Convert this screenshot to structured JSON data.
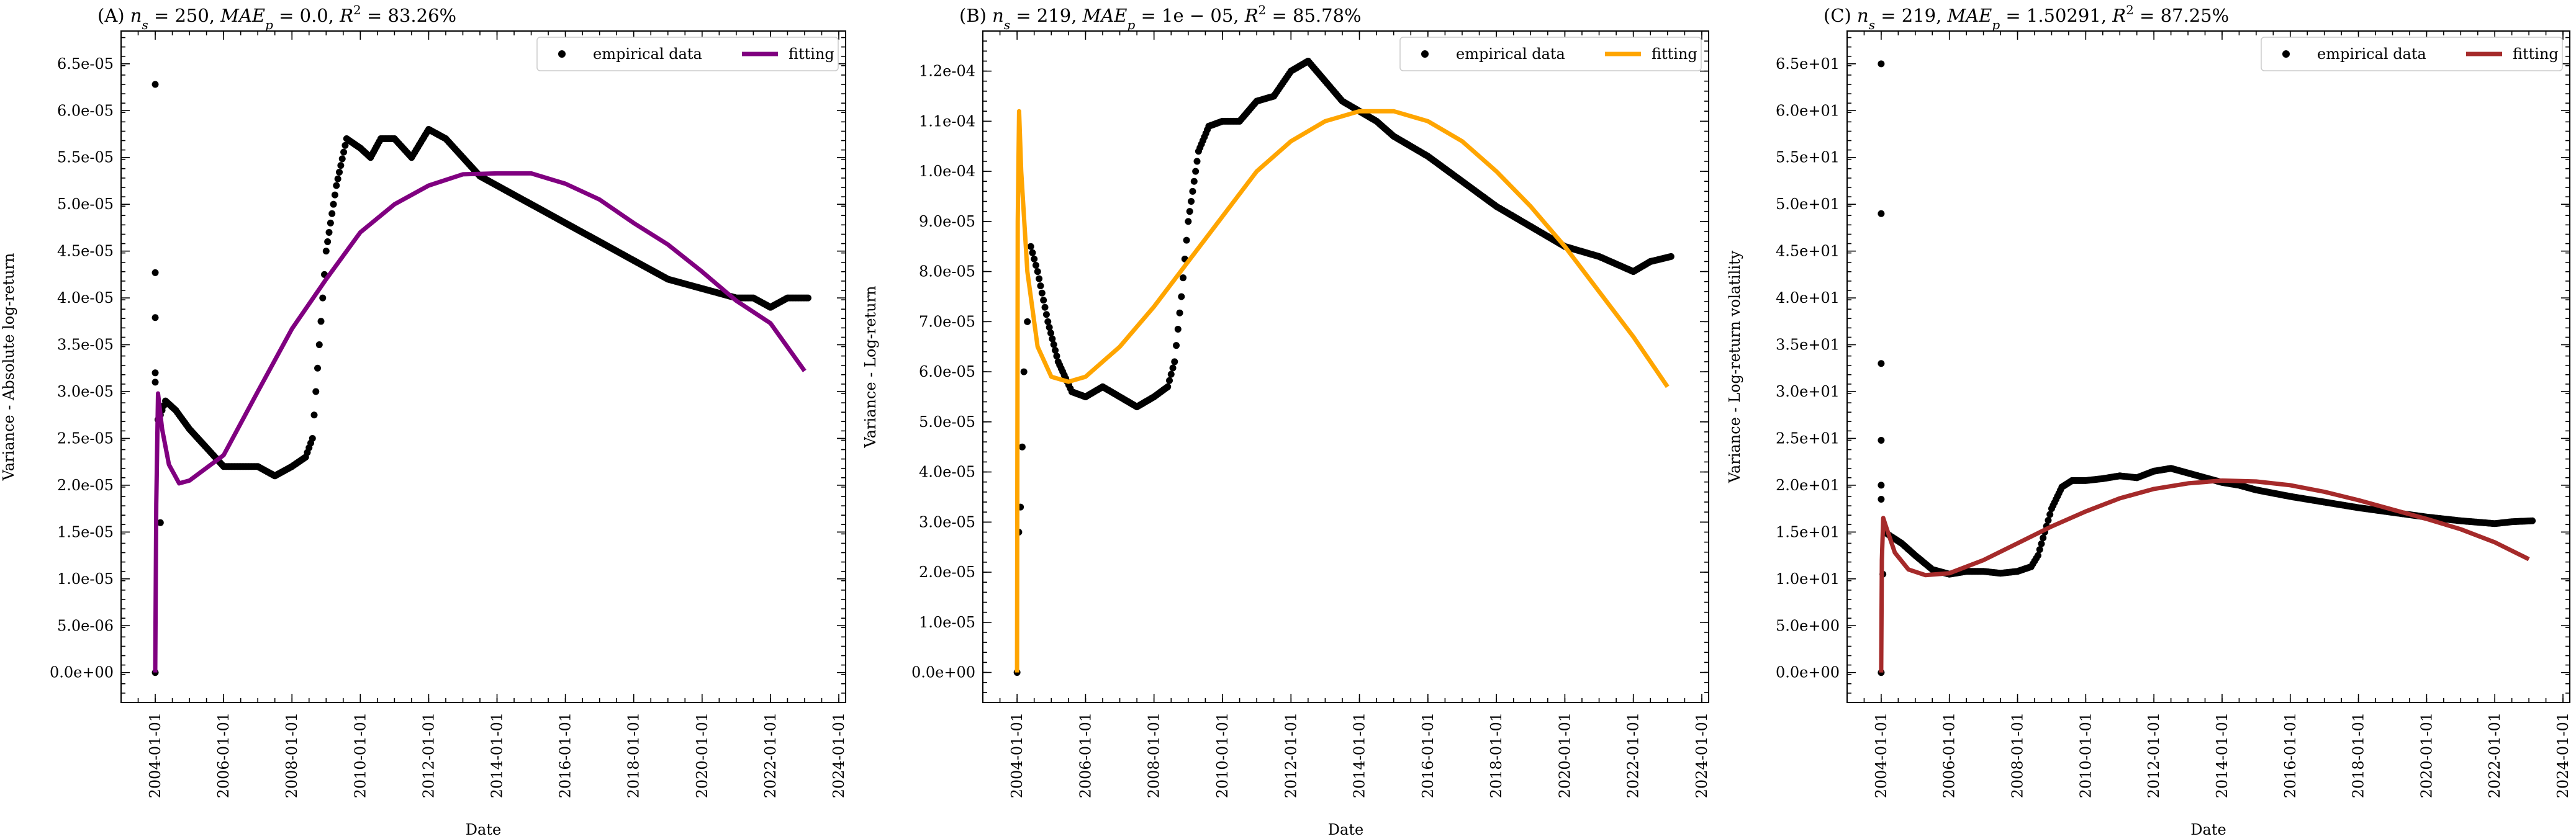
{
  "chart_data": [
    {
      "type": "scatter+line",
      "title": {
        "prefix": "(A)",
        "ns": "250",
        "mae": "0.0",
        "r2": "83.26%"
      },
      "xlabel": "Date",
      "ylabel": "Variance - Absolute log-return",
      "legend": {
        "placement": "top-right",
        "entries": [
          "empirical data",
          "fitting"
        ]
      },
      "fit_color": "#800080",
      "xlim": [
        2003.0,
        2024.2
      ],
      "ylim": [
        -3.2e-06,
        6.85e-05
      ],
      "x_ticks": [
        "2004-01-01",
        "2006-01-01",
        "2008-01-01",
        "2010-01-01",
        "2012-01-01",
        "2014-01-01",
        "2016-01-01",
        "2018-01-01",
        "2020-01-01",
        "2022-01-01",
        "2024-01-01"
      ],
      "y_ticks": [
        "0.0e+00",
        "5.0e-06",
        "1.0e-05",
        "1.5e-05",
        "2.0e-05",
        "2.5e-05",
        "3.0e-05",
        "3.5e-05",
        "4.0e-05",
        "4.5e-05",
        "5.0e-05",
        "5.5e-05",
        "6.0e-05",
        "6.5e-05"
      ],
      "y_tick_values": [
        0,
        5e-06,
        1e-05,
        1.5e-05,
        2e-05,
        2.5e-05,
        3e-05,
        3.5e-05,
        4e-05,
        4.5e-05,
        5e-05,
        5.5e-05,
        6e-05,
        6.5e-05
      ],
      "empirical_outliers": [
        [
          2004.0,
          6.28e-05
        ],
        [
          2004.0,
          4.27e-05
        ],
        [
          2004.0,
          3.79e-05
        ],
        [
          2004.0,
          3.2e-05
        ],
        [
          2004.0,
          3.1e-05
        ],
        [
          2004.0,
          0.0
        ],
        [
          2004.08,
          2.7e-05
        ],
        [
          2004.15,
          1.6e-05
        ]
      ],
      "empirical_data": [
        [
          2004.1,
          2.7e-05
        ],
        [
          2004.3,
          2.9e-05
        ],
        [
          2004.6,
          2.8e-05
        ],
        [
          2005.0,
          2.6e-05
        ],
        [
          2005.5,
          2.4e-05
        ],
        [
          2006.0,
          2.2e-05
        ],
        [
          2006.5,
          2.2e-05
        ],
        [
          2007.0,
          2.2e-05
        ],
        [
          2007.5,
          2.1e-05
        ],
        [
          2008.0,
          2.2e-05
        ],
        [
          2008.4,
          2.3e-05
        ],
        [
          2008.6,
          2.5e-05
        ],
        [
          2008.8,
          3.5e-05
        ],
        [
          2009.0,
          4.5e-05
        ],
        [
          2009.3,
          5.2e-05
        ],
        [
          2009.6,
          5.7e-05
        ],
        [
          2010.0,
          5.6e-05
        ],
        [
          2010.3,
          5.5e-05
        ],
        [
          2010.6,
          5.7e-05
        ],
        [
          2011.0,
          5.7e-05
        ],
        [
          2011.5,
          5.5e-05
        ],
        [
          2012.0,
          5.8e-05
        ],
        [
          2012.5,
          5.7e-05
        ],
        [
          2013.0,
          5.5e-05
        ],
        [
          2013.5,
          5.3e-05
        ],
        [
          2014.0,
          5.2e-05
        ],
        [
          2014.5,
          5.1e-05
        ],
        [
          2015.0,
          5e-05
        ],
        [
          2016.0,
          4.8e-05
        ],
        [
          2017.0,
          4.6e-05
        ],
        [
          2018.0,
          4.4e-05
        ],
        [
          2019.0,
          4.2e-05
        ],
        [
          2020.0,
          4.1e-05
        ],
        [
          2021.0,
          4e-05
        ],
        [
          2021.5,
          4e-05
        ],
        [
          2022.0,
          3.9e-05
        ],
        [
          2022.5,
          4e-05
        ],
        [
          2023.1,
          4e-05
        ]
      ],
      "fitting": [
        [
          2004.0,
          0.0
        ],
        [
          2004.03,
          1.8e-05
        ],
        [
          2004.08,
          2.98e-05
        ],
        [
          2004.2,
          2.6e-05
        ],
        [
          2004.4,
          2.22e-05
        ],
        [
          2004.7,
          2.02e-05
        ],
        [
          2005.0,
          2.05e-05
        ],
        [
          2006.0,
          2.32e-05
        ],
        [
          2007.0,
          3e-05
        ],
        [
          2008.0,
          3.67e-05
        ],
        [
          2009.0,
          4.2e-05
        ],
        [
          2010.0,
          4.7e-05
        ],
        [
          2011.0,
          5e-05
        ],
        [
          2012.0,
          5.2e-05
        ],
        [
          2013.0,
          5.32e-05
        ],
        [
          2014.0,
          5.33e-05
        ],
        [
          2015.0,
          5.33e-05
        ],
        [
          2016.0,
          5.22e-05
        ],
        [
          2017.0,
          5.05e-05
        ],
        [
          2018.0,
          4.8e-05
        ],
        [
          2019.0,
          4.57e-05
        ],
        [
          2020.0,
          4.28e-05
        ],
        [
          2021.0,
          3.97e-05
        ],
        [
          2022.0,
          3.73e-05
        ],
        [
          2023.0,
          3.22e-05
        ]
      ]
    },
    {
      "type": "scatter+line",
      "title": {
        "prefix": "(B)",
        "ns": "219",
        "mae": "1e − 05",
        "r2": "85.78%"
      },
      "xlabel": "Date",
      "ylabel": "Variance - Log-return",
      "legend": {
        "placement": "top-right",
        "entries": [
          "empirical data",
          "fitting"
        ]
      },
      "fit_color": "#FFA500",
      "xlim": [
        2003.0,
        2024.2
      ],
      "ylim": [
        -6e-06,
        0.000128
      ],
      "x_ticks": [
        "2004-01-01",
        "2006-01-01",
        "2008-01-01",
        "2010-01-01",
        "2012-01-01",
        "2014-01-01",
        "2016-01-01",
        "2018-01-01",
        "2020-01-01",
        "2022-01-01",
        "2024-01-01"
      ],
      "y_ticks": [
        "0.0e+00",
        "1.0e-05",
        "2.0e-05",
        "3.0e-05",
        "4.0e-05",
        "5.0e-05",
        "6.0e-05",
        "7.0e-05",
        "8.0e-05",
        "9.0e-05",
        "1.0e-04",
        "1.1e-04",
        "1.2e-04"
      ],
      "y_tick_values": [
        0,
        1e-05,
        2e-05,
        3e-05,
        4e-05,
        5e-05,
        6e-05,
        7e-05,
        8e-05,
        9e-05,
        0.0001,
        0.00011,
        0.00012
      ],
      "empirical_outliers": [
        [
          2004.0,
          0.0
        ],
        [
          2004.05,
          2.8e-05
        ],
        [
          2004.1,
          3.3e-05
        ],
        [
          2004.15,
          4.5e-05
        ],
        [
          2004.2,
          6e-05
        ],
        [
          2004.3,
          7e-05
        ]
      ],
      "empirical_data": [
        [
          2004.4,
          8.5e-05
        ],
        [
          2004.6,
          8e-05
        ],
        [
          2004.9,
          7e-05
        ],
        [
          2005.2,
          6.2e-05
        ],
        [
          2005.6,
          5.6e-05
        ],
        [
          2006.0,
          5.5e-05
        ],
        [
          2006.5,
          5.7e-05
        ],
        [
          2007.0,
          5.5e-05
        ],
        [
          2007.5,
          5.3e-05
        ],
        [
          2008.0,
          5.5e-05
        ],
        [
          2008.4,
          5.7e-05
        ],
        [
          2008.6,
          6.2e-05
        ],
        [
          2008.8,
          7.5e-05
        ],
        [
          2009.0,
          9e-05
        ],
        [
          2009.3,
          0.000104
        ],
        [
          2009.6,
          0.000109
        ],
        [
          2010.0,
          0.00011
        ],
        [
          2010.5,
          0.00011
        ],
        [
          2011.0,
          0.000114
        ],
        [
          2011.5,
          0.000115
        ],
        [
          2012.0,
          0.00012
        ],
        [
          2012.5,
          0.000122
        ],
        [
          2013.0,
          0.000118
        ],
        [
          2013.5,
          0.000114
        ],
        [
          2014.0,
          0.000112
        ],
        [
          2014.5,
          0.00011
        ],
        [
          2015.0,
          0.000107
        ],
        [
          2016.0,
          0.000103
        ],
        [
          2017.0,
          9.8e-05
        ],
        [
          2018.0,
          9.3e-05
        ],
        [
          2019.0,
          8.9e-05
        ],
        [
          2020.0,
          8.5e-05
        ],
        [
          2021.0,
          8.3e-05
        ],
        [
          2022.0,
          8e-05
        ],
        [
          2022.5,
          8.2e-05
        ],
        [
          2023.1,
          8.3e-05
        ]
      ],
      "fitting": [
        [
          2004.0,
          0.0
        ],
        [
          2004.02,
          9e-05
        ],
        [
          2004.06,
          0.000112
        ],
        [
          2004.12,
          0.0001
        ],
        [
          2004.3,
          8e-05
        ],
        [
          2004.6,
          6.5e-05
        ],
        [
          2005.0,
          5.9e-05
        ],
        [
          2005.5,
          5.8e-05
        ],
        [
          2006.0,
          5.9e-05
        ],
        [
          2007.0,
          6.5e-05
        ],
        [
          2008.0,
          7.3e-05
        ],
        [
          2009.0,
          8.2e-05
        ],
        [
          2010.0,
          9.1e-05
        ],
        [
          2011.0,
          0.0001
        ],
        [
          2012.0,
          0.000106
        ],
        [
          2013.0,
          0.00011
        ],
        [
          2014.0,
          0.000112
        ],
        [
          2015.0,
          0.000112
        ],
        [
          2016.0,
          0.00011
        ],
        [
          2017.0,
          0.000106
        ],
        [
          2018.0,
          0.0001
        ],
        [
          2019.0,
          9.3e-05
        ],
        [
          2020.0,
          8.5e-05
        ],
        [
          2021.0,
          7.6e-05
        ],
        [
          2022.0,
          6.7e-05
        ],
        [
          2023.0,
          5.7e-05
        ]
      ]
    },
    {
      "type": "scatter+line",
      "title": {
        "prefix": "(C)",
        "ns": "219",
        "mae": "1.50291",
        "r2": "87.25%"
      },
      "xlabel": "Date",
      "ylabel": "Variance - Log-return volatility",
      "legend": {
        "placement": "top-right",
        "entries": [
          "empirical data",
          "fitting"
        ]
      },
      "fit_color": "#A52A2A",
      "xlim": [
        2003.0,
        2024.2
      ],
      "ylim": [
        -3.2,
        68.5
      ],
      "x_ticks": [
        "2004-01-01",
        "2006-01-01",
        "2008-01-01",
        "2010-01-01",
        "2012-01-01",
        "2014-01-01",
        "2016-01-01",
        "2018-01-01",
        "2020-01-01",
        "2022-01-01",
        "2024-01-01"
      ],
      "y_ticks": [
        "0.0e+00",
        "5.0e+00",
        "1.0e+01",
        "1.5e+01",
        "2.0e+01",
        "2.5e+01",
        "3.0e+01",
        "3.5e+01",
        "4.0e+01",
        "4.5e+01",
        "5.0e+01",
        "5.5e+01",
        "6.0e+01",
        "6.5e+01"
      ],
      "y_tick_values": [
        0,
        5,
        10,
        15,
        20,
        25,
        30,
        35,
        40,
        45,
        50,
        55,
        60,
        65
      ],
      "empirical_outliers": [
        [
          2004.0,
          65.0
        ],
        [
          2004.0,
          49.0
        ],
        [
          2004.0,
          33.0
        ],
        [
          2004.0,
          24.8
        ],
        [
          2004.0,
          20.0
        ],
        [
          2004.0,
          18.5
        ],
        [
          2004.0,
          0.0
        ],
        [
          2004.05,
          10.5
        ]
      ],
      "empirical_data": [
        [
          2004.1,
          15.0
        ],
        [
          2004.3,
          14.5
        ],
        [
          2004.6,
          13.8
        ],
        [
          2005.0,
          12.5
        ],
        [
          2005.5,
          11.0
        ],
        [
          2006.0,
          10.5
        ],
        [
          2006.5,
          10.8
        ],
        [
          2007.0,
          10.8
        ],
        [
          2007.5,
          10.6
        ],
        [
          2008.0,
          10.8
        ],
        [
          2008.4,
          11.3
        ],
        [
          2008.6,
          12.5
        ],
        [
          2008.8,
          15.0
        ],
        [
          2009.0,
          17.5
        ],
        [
          2009.3,
          19.8
        ],
        [
          2009.6,
          20.5
        ],
        [
          2010.0,
          20.5
        ],
        [
          2010.5,
          20.7
        ],
        [
          2011.0,
          21.0
        ],
        [
          2011.5,
          20.8
        ],
        [
          2012.0,
          21.5
        ],
        [
          2012.5,
          21.8
        ],
        [
          2013.0,
          21.3
        ],
        [
          2013.5,
          20.8
        ],
        [
          2014.0,
          20.3
        ],
        [
          2014.5,
          20.0
        ],
        [
          2015.0,
          19.5
        ],
        [
          2016.0,
          18.8
        ],
        [
          2017.0,
          18.2
        ],
        [
          2018.0,
          17.6
        ],
        [
          2019.0,
          17.1
        ],
        [
          2020.0,
          16.6
        ],
        [
          2021.0,
          16.2
        ],
        [
          2022.0,
          15.9
        ],
        [
          2022.5,
          16.1
        ],
        [
          2023.1,
          16.2
        ]
      ],
      "fitting": [
        [
          2004.0,
          0.0
        ],
        [
          2004.02,
          12.0
        ],
        [
          2004.06,
          16.5
        ],
        [
          2004.15,
          15.5
        ],
        [
          2004.4,
          12.8
        ],
        [
          2004.8,
          11.0
        ],
        [
          2005.3,
          10.4
        ],
        [
          2006.0,
          10.6
        ],
        [
          2007.0,
          12.0
        ],
        [
          2008.0,
          13.8
        ],
        [
          2009.0,
          15.6
        ],
        [
          2010.0,
          17.2
        ],
        [
          2011.0,
          18.6
        ],
        [
          2012.0,
          19.6
        ],
        [
          2013.0,
          20.2
        ],
        [
          2014.0,
          20.5
        ],
        [
          2015.0,
          20.4
        ],
        [
          2016.0,
          20.0
        ],
        [
          2017.0,
          19.3
        ],
        [
          2018.0,
          18.4
        ],
        [
          2019.0,
          17.4
        ],
        [
          2020.0,
          16.4
        ],
        [
          2021.0,
          15.3
        ],
        [
          2022.0,
          13.9
        ],
        [
          2023.0,
          12.1
        ]
      ]
    }
  ]
}
